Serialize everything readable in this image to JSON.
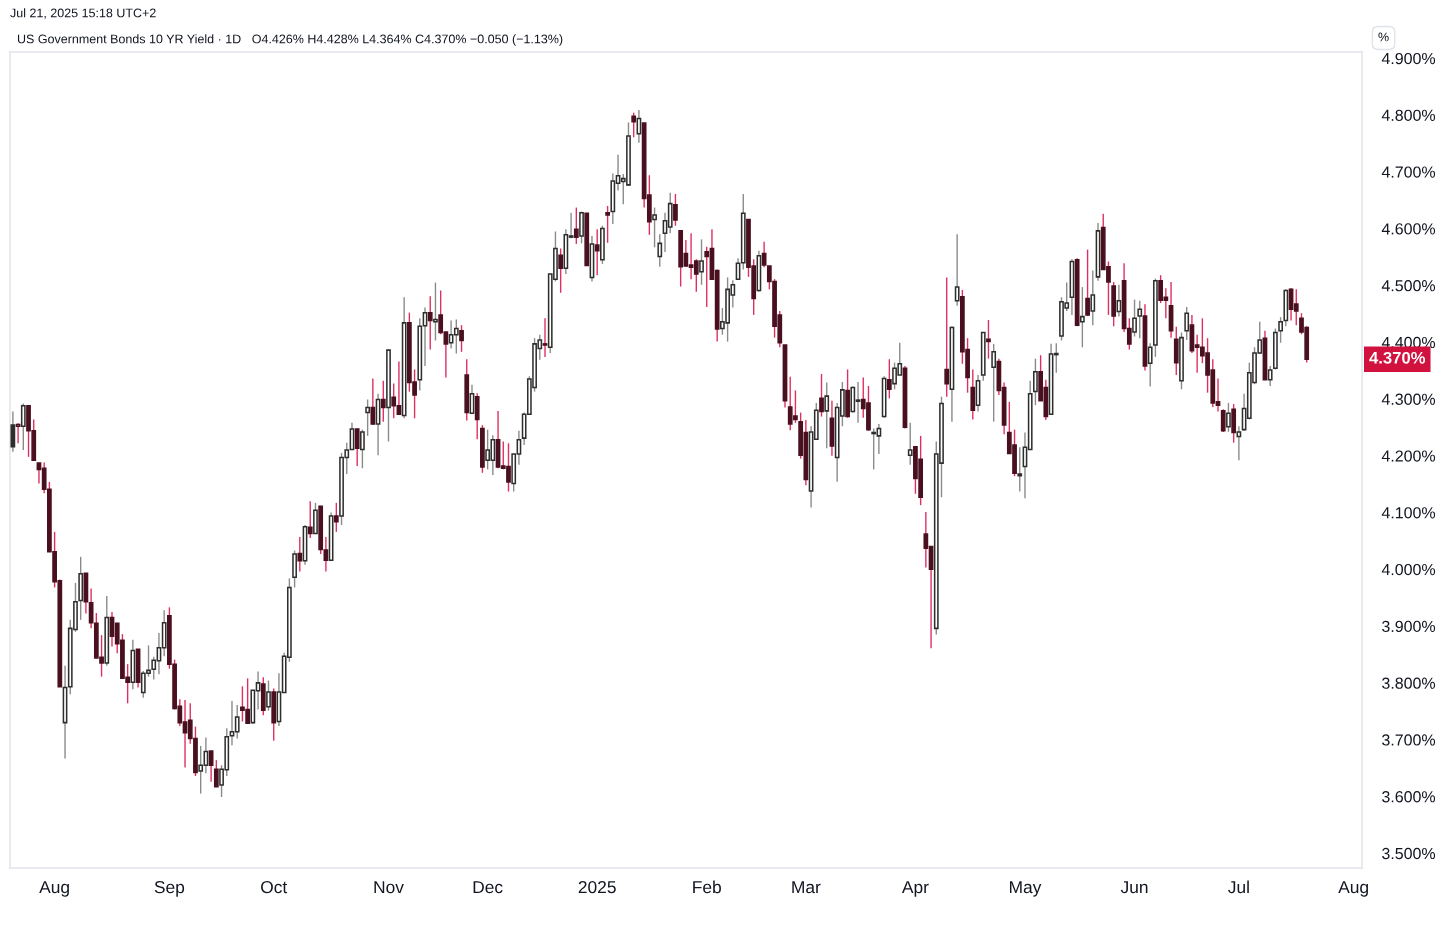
{
  "chart_data": {
    "type": "candlestick",
    "title": "US Government Bonds 10 YR Yield · 1D",
    "subtitle": "O4.426% H4.428% L4.364% C4.370% −0.050 (−1.13%)",
    "ylabel": "%",
    "annotations": [
      "Jul 21, 2025 15:18 UTC+2",
      "4.370%"
    ],
    "categories": [
      null,
      null,
      null,
      null,
      null,
      null,
      null,
      null,
      "Aug",
      null,
      null,
      null,
      null,
      null,
      null,
      null,
      null,
      null,
      null,
      null,
      null,
      null,
      null,
      null,
      null,
      null,
      null,
      null,
      null,
      null,
      "Sep",
      null,
      null,
      null,
      null,
      null,
      null,
      null,
      null,
      null,
      null,
      null,
      null,
      null,
      null,
      null,
      null,
      null,
      null,
      null,
      "Oct",
      null,
      null,
      null,
      null,
      null,
      null,
      null,
      null,
      null,
      null,
      null,
      null,
      null,
      null,
      null,
      null,
      null,
      null,
      null,
      null,
      null,
      "Nov",
      null,
      null,
      null,
      null,
      null,
      null,
      null,
      null,
      null,
      null,
      null,
      null,
      null,
      null,
      null,
      null,
      null,
      null,
      "Dec",
      null,
      null,
      null,
      null,
      null,
      null,
      null,
      null,
      null,
      null,
      null,
      null,
      null,
      null,
      null,
      null,
      null,
      null,
      null,
      null,
      "2025",
      null,
      null,
      null,
      null,
      null,
      null,
      null,
      null,
      null,
      null,
      null,
      null,
      null,
      null,
      null,
      null,
      null,
      null,
      null,
      null,
      "Feb",
      null,
      null,
      null,
      null,
      null,
      null,
      null,
      null,
      null,
      null,
      null,
      null,
      null,
      null,
      null,
      null,
      null,
      null,
      "Mar",
      null,
      null,
      null,
      null,
      null,
      null,
      null,
      null,
      null,
      null,
      null,
      null,
      null,
      null,
      null,
      null,
      null,
      null,
      null,
      null,
      "Apr",
      null,
      null,
      null,
      null,
      null,
      null,
      null,
      null,
      null,
      null,
      null,
      null,
      null,
      null,
      null,
      null,
      null,
      null,
      null,
      null,
      "May",
      null,
      null,
      null,
      null,
      null,
      null,
      null,
      null,
      null,
      null,
      null,
      null,
      null,
      null,
      null,
      null,
      null,
      null,
      null,
      null,
      "Jun",
      null,
      null,
      null,
      null,
      null,
      null,
      null,
      null,
      null,
      null,
      null,
      null,
      null,
      null,
      null,
      null,
      null,
      null,
      null,
      "Jul",
      null,
      null,
      null,
      null,
      null,
      null,
      null,
      null,
      null,
      null,
      null,
      null,
      null,
      null,
      null,
      null,
      null,
      null,
      null,
      null,
      null,
      "Aug"
    ],
    "ohlc": [
      [
        4.254,
        4.278,
        4.207,
        4.216
      ],
      [
        4.252,
        4.257,
        4.222,
        4.255
      ],
      [
        4.252,
        4.292,
        4.21,
        4.288
      ],
      [
        4.288,
        4.289,
        4.198,
        4.244
      ],
      [
        4.244,
        4.264,
        4.191,
        4.192
      ],
      [
        4.187,
        4.187,
        4.151,
        4.176
      ],
      [
        4.178,
        4.188,
        4.134,
        4.141
      ],
      [
        4.141,
        4.154,
        4.031,
        4.031
      ],
      [
        4.031,
        4.066,
        3.968,
        3.978
      ],
      [
        3.98,
        3.982,
        3.793,
        3.793
      ],
      [
        3.73,
        3.83,
        3.667,
        3.792
      ],
      [
        3.793,
        3.911,
        3.78,
        3.896
      ],
      [
        3.894,
        3.976,
        3.89,
        3.943
      ],
      [
        3.945,
        4.022,
        3.911,
        3.992
      ],
      [
        3.993,
        3.993,
        3.922,
        3.943
      ],
      [
        3.941,
        3.966,
        3.896,
        3.906
      ],
      [
        3.905,
        3.923,
        3.844,
        3.844
      ],
      [
        3.845,
        3.884,
        3.811,
        3.835
      ],
      [
        3.835,
        3.953,
        3.83,
        3.915
      ],
      [
        3.915,
        3.925,
        3.864,
        3.882
      ],
      [
        3.905,
        3.905,
        3.852,
        3.869
      ],
      [
        3.875,
        3.886,
        3.808,
        3.808
      ],
      [
        3.81,
        3.833,
        3.764,
        3.801
      ],
      [
        3.801,
        3.876,
        3.789,
        3.857
      ],
      [
        3.859,
        3.859,
        3.792,
        3.801
      ],
      [
        3.783,
        3.821,
        3.774,
        3.817
      ],
      [
        3.817,
        3.866,
        3.811,
        3.822
      ],
      [
        3.824,
        3.846,
        3.806,
        3.84
      ],
      [
        3.839,
        3.888,
        3.815,
        3.862
      ],
      [
        3.862,
        3.928,
        3.847,
        3.906
      ],
      [
        3.918,
        3.933,
        3.825,
        3.833
      ],
      [
        3.833,
        3.841,
        3.753,
        3.755
      ],
      [
        3.759,
        3.771,
        3.724,
        3.73
      ],
      [
        3.731,
        3.77,
        3.651,
        3.712
      ],
      [
        3.734,
        3.764,
        3.693,
        3.702
      ],
      [
        3.702,
        3.723,
        3.636,
        3.642
      ],
      [
        3.645,
        3.689,
        3.605,
        3.655
      ],
      [
        3.655,
        3.704,
        3.641,
        3.679
      ],
      [
        3.68,
        3.68,
        3.626,
        3.655
      ],
      [
        3.648,
        3.664,
        3.617,
        3.617
      ],
      [
        3.62,
        3.655,
        3.599,
        3.648
      ],
      [
        3.647,
        3.72,
        3.636,
        3.705
      ],
      [
        3.707,
        3.768,
        3.69,
        3.714
      ],
      [
        3.714,
        3.761,
        3.702,
        3.74
      ],
      [
        3.757,
        3.794,
        3.732,
        3.752
      ],
      [
        3.753,
        3.808,
        3.728,
        3.729
      ],
      [
        3.73,
        3.787,
        3.728,
        3.787
      ],
      [
        3.786,
        3.82,
        3.753,
        3.8
      ],
      [
        3.798,
        3.81,
        3.743,
        3.752
      ],
      [
        3.758,
        3.804,
        3.751,
        3.784
      ],
      [
        3.784,
        3.79,
        3.698,
        3.73
      ],
      [
        3.732,
        3.817,
        3.724,
        3.784
      ],
      [
        3.783,
        3.853,
        3.783,
        3.847
      ],
      [
        3.845,
        3.984,
        3.837,
        3.968
      ],
      [
        3.986,
        4.033,
        3.968,
        4.027
      ],
      [
        4.028,
        4.057,
        3.996,
        4.015
      ],
      [
        4.015,
        4.078,
        4.008,
        4.075
      ],
      [
        4.074,
        4.12,
        4.055,
        4.063
      ],
      [
        4.063,
        4.117,
        4.063,
        4.104
      ],
      [
        4.111,
        4.111,
        4.027,
        4.035
      ],
      [
        4.034,
        4.057,
        3.996,
        4.016
      ],
      [
        4.016,
        4.1,
        4.016,
        4.094
      ],
      [
        4.094,
        4.117,
        4.066,
        4.084
      ],
      [
        4.094,
        4.205,
        4.078,
        4.197
      ],
      [
        4.197,
        4.223,
        4.168,
        4.21
      ],
      [
        4.211,
        4.258,
        4.21,
        4.247
      ],
      [
        4.247,
        4.248,
        4.182,
        4.213
      ],
      [
        4.211,
        4.246,
        4.178,
        4.242
      ],
      [
        4.276,
        4.299,
        4.235,
        4.285
      ],
      [
        4.285,
        4.336,
        4.254,
        4.256
      ],
      [
        4.256,
        4.309,
        4.201,
        4.299
      ],
      [
        4.299,
        4.332,
        4.26,
        4.285
      ],
      [
        4.285,
        4.386,
        4.225,
        4.386
      ],
      [
        4.303,
        4.327,
        4.266,
        4.288
      ],
      [
        4.288,
        4.366,
        4.273,
        4.273
      ],
      [
        4.271,
        4.479,
        4.266,
        4.434
      ],
      [
        4.434,
        4.452,
        4.313,
        4.329
      ],
      [
        4.33,
        4.352,
        4.266,
        4.307
      ],
      [
        4.334,
        4.442,
        4.315,
        4.428
      ],
      [
        4.429,
        4.461,
        4.358,
        4.452
      ],
      [
        4.452,
        4.481,
        4.387,
        4.438
      ],
      [
        4.436,
        4.505,
        4.403,
        4.44
      ],
      [
        4.448,
        4.491,
        4.414,
        4.417
      ],
      [
        4.418,
        4.418,
        4.338,
        4.397
      ],
      [
        4.399,
        4.438,
        4.389,
        4.413
      ],
      [
        4.413,
        4.44,
        4.38,
        4.424
      ],
      [
        4.42,
        4.43,
        4.383,
        4.403
      ],
      [
        4.342,
        4.37,
        4.262,
        4.276
      ],
      [
        4.275,
        4.325,
        4.275,
        4.309
      ],
      [
        4.304,
        4.31,
        4.229,
        4.264
      ],
      [
        4.248,
        4.254,
        4.17,
        4.18
      ],
      [
        4.192,
        4.246,
        4.176,
        4.21
      ],
      [
        4.192,
        4.236,
        4.166,
        4.228
      ],
      [
        4.228,
        4.279,
        4.178,
        4.18
      ],
      [
        4.182,
        4.225,
        4.176,
        4.178
      ],
      [
        4.181,
        4.222,
        4.137,
        4.154
      ],
      [
        4.151,
        4.203,
        4.137,
        4.203
      ],
      [
        4.203,
        4.244,
        4.184,
        4.228
      ],
      [
        4.231,
        4.276,
        4.219,
        4.273
      ],
      [
        4.273,
        4.34,
        4.272,
        4.335
      ],
      [
        4.32,
        4.407,
        4.313,
        4.397
      ],
      [
        4.389,
        4.413,
        4.369,
        4.404
      ],
      [
        4.397,
        4.442,
        4.374,
        4.395
      ],
      [
        4.391,
        4.52,
        4.381,
        4.52
      ],
      [
        4.511,
        4.595,
        4.507,
        4.565
      ],
      [
        4.553,
        4.565,
        4.487,
        4.53
      ],
      [
        4.53,
        4.599,
        4.52,
        4.589
      ],
      [
        4.585,
        4.628,
        4.583,
        4.587
      ],
      [
        4.599,
        4.637,
        4.573,
        4.585
      ],
      [
        4.587,
        4.63,
        4.574,
        4.628
      ],
      [
        4.627,
        4.627,
        4.534,
        4.535
      ],
      [
        4.514,
        4.587,
        4.507,
        4.573
      ],
      [
        4.571,
        4.599,
        4.518,
        4.561
      ],
      [
        4.545,
        4.605,
        4.538,
        4.6
      ],
      [
        4.628,
        4.64,
        4.575,
        4.624
      ],
      [
        4.63,
        4.697,
        4.608,
        4.684
      ],
      [
        4.68,
        4.73,
        4.667,
        4.693
      ],
      [
        4.683,
        4.696,
        4.643,
        4.688
      ],
      [
        4.677,
        4.787,
        4.675,
        4.763
      ],
      [
        4.798,
        4.804,
        4.761,
        4.788
      ],
      [
        4.767,
        4.809,
        4.751,
        4.794
      ],
      [
        4.786,
        4.786,
        4.637,
        4.653
      ],
      [
        4.659,
        4.694,
        4.589,
        4.612
      ],
      [
        4.616,
        4.637,
        4.567,
        4.624
      ],
      [
        4.551,
        4.59,
        4.533,
        4.574
      ],
      [
        4.592,
        4.628,
        4.559,
        4.614
      ],
      [
        4.603,
        4.663,
        4.592,
        4.644
      ],
      [
        4.642,
        4.661,
        4.605,
        4.615
      ],
      [
        4.596,
        4.596,
        4.498,
        4.533
      ],
      [
        4.556,
        4.58,
        4.533,
        4.534
      ],
      [
        4.536,
        4.592,
        4.511,
        4.532
      ],
      [
        4.543,
        4.546,
        4.489,
        4.52
      ],
      [
        4.524,
        4.581,
        4.501,
        4.543
      ],
      [
        4.559,
        4.568,
        4.462,
        4.551
      ],
      [
        4.565,
        4.599,
        4.51,
        4.511
      ],
      [
        4.526,
        4.528,
        4.401,
        4.423
      ],
      [
        4.424,
        4.46,
        4.413,
        4.436
      ],
      [
        4.434,
        4.514,
        4.401,
        4.493
      ],
      [
        4.483,
        4.509,
        4.461,
        4.501
      ],
      [
        4.511,
        4.548,
        4.51,
        4.539
      ],
      [
        4.54,
        4.661,
        4.528,
        4.627
      ],
      [
        4.616,
        4.616,
        4.515,
        4.532
      ],
      [
        4.534,
        4.546,
        4.448,
        4.477
      ],
      [
        4.491,
        4.561,
        4.489,
        4.552
      ],
      [
        4.556,
        4.577,
        4.532,
        4.536
      ],
      [
        4.534,
        4.534,
        4.493,
        4.507
      ],
      [
        4.507,
        4.511,
        4.408,
        4.428
      ],
      [
        4.448,
        4.455,
        4.391,
        4.399
      ],
      [
        4.395,
        4.395,
        4.285,
        4.297
      ],
      [
        4.286,
        4.339,
        4.245,
        4.256
      ],
      [
        4.27,
        4.315,
        4.258,
        4.264
      ],
      [
        4.26,
        4.276,
        4.195,
        4.201
      ],
      [
        4.241,
        4.263,
        4.148,
        4.158
      ],
      [
        4.138,
        4.252,
        4.109,
        4.242
      ],
      [
        4.229,
        4.293,
        4.229,
        4.28
      ],
      [
        4.301,
        4.344,
        4.269,
        4.278
      ],
      [
        4.279,
        4.329,
        4.213,
        4.305
      ],
      [
        4.266,
        4.297,
        4.2,
        4.217
      ],
      [
        4.197,
        4.293,
        4.154,
        4.285
      ],
      [
        4.27,
        4.33,
        4.252,
        4.316
      ],
      [
        4.315,
        4.352,
        4.267,
        4.269
      ],
      [
        4.278,
        4.322,
        4.276,
        4.32
      ],
      [
        4.296,
        4.33,
        4.258,
        4.298
      ],
      [
        4.299,
        4.338,
        4.267,
        4.283
      ],
      [
        4.293,
        4.323,
        4.244,
        4.246
      ],
      [
        4.239,
        4.248,
        4.176,
        4.241
      ],
      [
        4.235,
        4.256,
        4.203,
        4.248
      ],
      [
        4.269,
        4.34,
        4.267,
        4.336
      ],
      [
        4.334,
        4.37,
        4.301,
        4.317
      ],
      [
        4.327,
        4.364,
        4.317,
        4.354
      ],
      [
        4.342,
        4.399,
        4.342,
        4.362
      ],
      [
        4.354,
        4.358,
        4.248,
        4.25
      ],
      [
        4.201,
        4.258,
        4.184,
        4.21
      ],
      [
        4.216,
        4.216,
        4.133,
        4.16
      ],
      [
        4.194,
        4.235,
        4.113,
        4.127
      ],
      [
        4.062,
        4.101,
        4.003,
        4.037
      ],
      [
        4.04,
        4.04,
        3.861,
        4.0
      ],
      [
        3.896,
        4.225,
        3.885,
        4.203
      ],
      [
        4.187,
        4.304,
        4.127,
        4.292
      ],
      [
        4.352,
        4.514,
        4.304,
        4.327
      ],
      [
        4.317,
        4.428,
        4.26,
        4.426
      ],
      [
        4.473,
        4.59,
        4.464,
        4.497
      ],
      [
        4.48,
        4.492,
        4.362,
        4.383
      ],
      [
        4.387,
        4.407,
        4.311,
        4.338
      ],
      [
        4.32,
        4.352,
        4.264,
        4.28
      ],
      [
        4.289,
        4.342,
        4.278,
        4.332
      ],
      [
        4.342,
        4.418,
        4.332,
        4.417
      ],
      [
        4.405,
        4.439,
        4.371,
        4.401
      ],
      [
        4.356,
        4.397,
        4.26,
        4.383
      ],
      [
        4.366,
        4.371,
        4.307,
        4.315
      ],
      [
        4.32,
        4.329,
        4.238,
        4.254
      ],
      [
        4.241,
        4.295,
        4.203,
        4.204
      ],
      [
        4.219,
        4.246,
        4.164,
        4.169
      ],
      [
        4.165,
        4.215,
        4.137,
        4.168
      ],
      [
        4.181,
        4.241,
        4.125,
        4.215
      ],
      [
        4.211,
        4.332,
        4.211,
        4.309
      ],
      [
        4.313,
        4.371,
        4.289,
        4.348
      ],
      [
        4.348,
        4.377,
        4.297,
        4.297
      ],
      [
        4.32,
        4.334,
        4.263,
        4.269
      ],
      [
        4.273,
        4.397,
        4.273,
        4.379
      ],
      [
        4.378,
        4.398,
        4.346,
        4.38
      ],
      [
        4.411,
        4.479,
        4.403,
        4.471
      ],
      [
        4.46,
        4.505,
        4.455,
        4.469
      ],
      [
        4.479,
        4.546,
        4.448,
        4.542
      ],
      [
        4.545,
        4.548,
        4.428,
        4.43
      ],
      [
        4.436,
        4.497,
        4.391,
        4.445
      ],
      [
        4.477,
        4.563,
        4.446,
        4.448
      ],
      [
        4.455,
        4.526,
        4.43,
        4.483
      ],
      [
        4.515,
        4.61,
        4.508,
        4.596
      ],
      [
        4.602,
        4.626,
        4.527,
        4.528
      ],
      [
        4.533,
        4.542,
        4.448,
        4.506
      ],
      [
        4.499,
        4.506,
        4.428,
        4.446
      ],
      [
        4.454,
        4.501,
        4.445,
        4.473
      ],
      [
        4.508,
        4.539,
        4.418,
        4.424
      ],
      [
        4.424,
        4.442,
        4.387,
        4.397
      ],
      [
        4.418,
        4.475,
        4.41,
        4.442
      ],
      [
        4.446,
        4.473,
        4.407,
        4.458
      ],
      [
        4.446,
        4.467,
        4.35,
        4.358
      ],
      [
        4.363,
        4.398,
        4.322,
        4.391
      ],
      [
        4.395,
        4.512,
        4.374,
        4.508
      ],
      [
        4.508,
        4.518,
        4.469,
        4.474
      ],
      [
        4.479,
        4.495,
        4.442,
        4.474
      ],
      [
        4.464,
        4.506,
        4.408,
        4.42
      ],
      [
        4.405,
        4.427,
        4.342,
        4.364
      ],
      [
        4.332,
        4.417,
        4.317,
        4.408
      ],
      [
        4.42,
        4.462,
        4.404,
        4.451
      ],
      [
        4.43,
        4.448,
        4.381,
        4.385
      ],
      [
        4.395,
        4.413,
        4.346,
        4.391
      ],
      [
        4.391,
        4.442,
        4.363,
        4.376
      ],
      [
        4.381,
        4.407,
        4.311,
        4.342
      ],
      [
        4.351,
        4.37,
        4.286,
        4.293
      ],
      [
        4.295,
        4.336,
        4.278,
        4.289
      ],
      [
        4.279,
        4.282,
        4.242,
        4.244
      ],
      [
        4.251,
        4.293,
        4.242,
        4.275
      ],
      [
        4.282,
        4.291,
        4.223,
        4.241
      ],
      [
        4.234,
        4.252,
        4.192,
        4.242
      ],
      [
        4.246,
        4.309,
        4.244,
        4.283
      ],
      [
        4.266,
        4.364,
        4.264,
        4.346
      ],
      [
        4.329,
        4.391,
        4.326,
        4.381
      ],
      [
        4.381,
        4.436,
        4.379,
        4.404
      ],
      [
        4.407,
        4.42,
        4.334,
        4.334
      ],
      [
        4.334,
        4.358,
        4.323,
        4.351
      ],
      [
        4.354,
        4.424,
        4.352,
        4.417
      ],
      [
        4.42,
        4.444,
        4.399,
        4.436
      ],
      [
        4.438,
        4.493,
        4.428,
        4.491
      ],
      [
        4.493,
        4.495,
        4.438,
        4.458
      ],
      [
        4.467,
        4.493,
        4.43,
        4.455
      ],
      [
        4.442,
        4.451,
        4.414,
        4.418
      ],
      [
        4.426,
        4.428,
        4.364,
        4.37
      ],
      null,
      null,
      null,
      null,
      null,
      null,
      null,
      null,
      null
    ],
    "colors": [
      "#2e2e2e",
      "#4a1020",
      "#2e2e2e",
      "#4a1020",
      "#4a1020",
      "#4a1020",
      "#4a1020",
      "#4a1020",
      "#4a1020",
      "#4a1020",
      "#2e2e2e",
      "#2e2e2e",
      "#2e2e2e",
      "#2e2e2e",
      "#4a1020",
      "#4a1020",
      "#4a1020",
      "#4a1020",
      "#2e2e2e",
      "#4a1020",
      "#4a1020",
      "#4a1020",
      "#4a1020",
      "#2e2e2e",
      "#4a1020",
      "#2e2e2e",
      "#2e2e2e",
      "#2e2e2e",
      "#2e2e2e",
      "#2e2e2e",
      "#4a1020",
      "#4a1020",
      "#4a1020",
      "#4a1020",
      "#4a1020",
      "#4a1020",
      "#2e2e2e",
      "#2e2e2e",
      "#4a1020",
      "#4a1020",
      "#2e2e2e",
      "#2e2e2e",
      "#2e2e2e",
      "#2e2e2e",
      "#4a1020",
      "#4a1020",
      "#2e2e2e",
      "#2e2e2e",
      "#4a1020",
      "#2e2e2e",
      "#4a1020",
      "#2e2e2e",
      "#2e2e2e",
      "#2e2e2e",
      "#2e2e2e",
      "#4a1020",
      "#2e2e2e",
      "#4a1020",
      "#2e2e2e",
      "#4a1020",
      "#4a1020",
      "#2e2e2e",
      "#4a1020",
      "#2e2e2e",
      "#2e2e2e",
      "#2e2e2e",
      "#4a1020",
      "#2e2e2e",
      "#2e2e2e",
      "#4a1020",
      "#2e2e2e",
      "#4a1020",
      "#2e2e2e",
      "#4a1020",
      "#4a1020",
      "#2e2e2e",
      "#4a1020",
      "#4a1020",
      "#2e2e2e",
      "#2e2e2e",
      "#4a1020",
      "#2e2e2e",
      "#4a1020",
      "#4a1020",
      "#2e2e2e",
      "#2e2e2e",
      "#4a1020",
      "#4a1020",
      "#2e2e2e",
      "#4a1020",
      "#4a1020",
      "#2e2e2e",
      "#2e2e2e",
      "#4a1020",
      "#4a1020",
      "#4a1020",
      "#2e2e2e",
      "#2e2e2e",
      "#2e2e2e",
      "#2e2e2e",
      "#2e2e2e",
      "#2e2e2e",
      "#4a1020",
      "#2e2e2e",
      "#2e2e2e",
      "#4a1020",
      "#2e2e2e",
      "#2e2e2e",
      "#4a1020",
      "#2e2e2e",
      "#4a1020",
      "#2e2e2e",
      "#4a1020",
      "#2e2e2e",
      "#4a1020",
      "#2e2e2e",
      "#2e2e2e",
      "#2e2e2e",
      "#2e2e2e",
      "#4a1020",
      "#2e2e2e",
      "#4a1020",
      "#4a1020",
      "#2e2e2e",
      "#2e2e2e",
      "#2e2e2e",
      "#2e2e2e",
      "#4a1020",
      "#4a1020",
      "#4a1020",
      "#4a1020",
      "#4a1020",
      "#2e2e2e",
      "#4a1020",
      "#4a1020",
      "#4a1020",
      "#2e2e2e",
      "#2e2e2e",
      "#2e2e2e",
      "#2e2e2e",
      "#2e2e2e",
      "#4a1020",
      "#4a1020",
      "#2e2e2e",
      "#4a1020",
      "#4a1020",
      "#4a1020",
      "#4a1020",
      "#4a1020",
      "#4a1020",
      "#4a1020",
      "#4a1020",
      "#4a1020",
      "#2e2e2e",
      "#2e2e2e",
      "#4a1020",
      "#2e2e2e",
      "#4a1020",
      "#2e2e2e",
      "#2e2e2e",
      "#4a1020",
      "#2e2e2e",
      "#2e2e2e",
      "#4a1020",
      "#4a1020",
      "#2e2e2e",
      "#2e2e2e",
      "#2e2e2e",
      "#4a1020",
      "#2e2e2e",
      "#2e2e2e",
      "#4a1020",
      "#2e2e2e",
      "#4a1020",
      "#4a1020",
      "#4a1020",
      "#4a1020",
      "#2e2e2e",
      "#2e2e2e",
      "#4a1020",
      "#2e2e2e",
      "#2e2e2e",
      "#4a1020",
      "#4a1020",
      "#4a1020",
      "#2e2e2e",
      "#2e2e2e",
      "#4a1020",
      "#2e2e2e",
      "#4a1020",
      "#4a1020",
      "#4a1020",
      "#4a1020",
      "#2e2e2e",
      "#2e2e2e",
      "#2e2e2e",
      "#2e2e2e",
      "#4a1020",
      "#4a1020",
      "#2e2e2e",
      "#2e2e2e",
      "#2e2e2e",
      "#2e2e2e",
      "#2e2e2e",
      "#4a1020",
      "#2e2e2e",
      "#4a1020",
      "#2e2e2e",
      "#2e2e2e",
      "#4a1020",
      "#4a1020",
      "#4a1020",
      "#2e2e2e",
      "#4a1020",
      "#4a1020",
      "#2e2e2e",
      "#2e2e2e",
      "#4a1020",
      "#2e2e2e",
      "#2e2e2e",
      "#4a1020",
      "#4a1020",
      "#4a1020",
      "#4a1020",
      "#2e2e2e",
      "#2e2e2e",
      "#4a1020",
      "#4a1020",
      "#4a1020",
      "#4a1020",
      "#4a1020",
      "#4a1020",
      "#4a1020",
      "#2e2e2e",
      "#4a1020",
      "#2e2e2e",
      "#2e2e2e",
      "#2e2e2e",
      "#2e2e2e",
      "#2e2e2e",
      "#4a1020",
      "#2e2e2e",
      "#2e2e2e",
      "#2e2e2e",
      "#2e2e2e",
      "#4a1020",
      "#4a1020",
      "#4a1020",
      "#4a1020",
      null,
      null,
      null,
      null,
      null,
      null,
      null,
      null,
      null
    ],
    "ylim": [
      3.474,
      4.911
    ],
    "yticks": [
      {
        "value": 3.5,
        "label": "3.500%"
      },
      {
        "value": 3.6,
        "label": "3.600%"
      },
      {
        "value": 3.7,
        "label": "3.700%"
      },
      {
        "value": 3.8,
        "label": "3.800%"
      },
      {
        "value": 3.9,
        "label": "3.900%"
      },
      {
        "value": 4.0,
        "label": "4.000%"
      },
      {
        "value": 4.1,
        "label": "4.100%"
      },
      {
        "value": 4.2,
        "label": "4.200%"
      },
      {
        "value": 4.3,
        "label": "4.300%"
      },
      {
        "value": 4.4,
        "label": "4.400%"
      },
      {
        "value": 4.5,
        "label": "4.500%"
      },
      {
        "value": 4.6,
        "label": "4.600%"
      },
      {
        "value": 4.7,
        "label": "4.700%"
      },
      {
        "value": 4.8,
        "label": "4.800%"
      },
      {
        "value": 4.9,
        "label": "4.900%"
      }
    ]
  }
}
